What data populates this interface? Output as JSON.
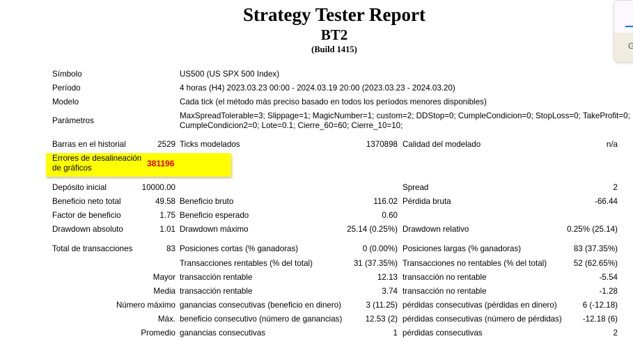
{
  "header": {
    "title": "Strategy Tester Report",
    "subtitle": "BT2",
    "build": "(Build 1415)"
  },
  "info": [
    {
      "label": "Símbolo",
      "value": "US500 (US SPX 500 Index)"
    },
    {
      "label": "Período",
      "value": "4 horas (H4) 2023.03.23 00:00 - 2024.03.19 20:00 (2023.03.23 - 2024.03.20)"
    },
    {
      "label": "Modelo",
      "value": "Cada tick (el método más preciso basado en todos los períodos menores disponibles)"
    },
    {
      "label": "Parámetros",
      "value": "MaxSpreadTolerable=3; Slippage=1; MagicNumber=1; custom=2; DDStop=0; CumpleCondicion=0; StopLoss=0; TakeProfit=0;",
      "value2": "CumpleCondicion2=0; Lote=0.1; Cierre_60=60; Cierre_10=10;"
    }
  ],
  "highlight": {
    "label1": "Errores de desalineación",
    "label2": "de gráficos",
    "value": "381196",
    "color": "#ffff00",
    "value_color": "#e00000"
  },
  "rows": [
    {
      "l1": "Barras en el historial",
      "v1": "2529",
      "l2": "Ticks modelados",
      "v2": "1370898",
      "l3": "Calidad del modelado",
      "v3": "n/a"
    },
    {
      "l1": "Depósito inicial",
      "v1": "10000.00",
      "l2": "",
      "v2": "",
      "l3": "Spread",
      "v3": "2"
    },
    {
      "l1": "Beneficio neto total",
      "v1": "49.58",
      "l2": "Beneficio bruto",
      "v2": "116.02",
      "l3": "Pérdida bruta",
      "v3": "-66.44"
    },
    {
      "l1": "Factor de beneficio",
      "v1": "1.75",
      "l2": "Beneficio esperado",
      "v2": "0.60",
      "l3": "",
      "v3": ""
    },
    {
      "l1": "Drawdown absoluto",
      "v1": "1.01",
      "l2": "Drawdown máximo",
      "v2": "25.14 (0.25%)",
      "l3": "Drawdown relativo",
      "v3": "0.25% (25.14)"
    },
    {
      "l1": "Total de transacciones",
      "v1": "83",
      "l2": "Posiciones cortas (% ganadoras)",
      "v2": "0 (0.00%)",
      "l3": "Posiciones largas (% ganadoras)",
      "v3": "83 (37.35%)"
    },
    {
      "l1": "",
      "v1": "",
      "l2": "Transacciones rentables (% del total)",
      "v2": "31 (37.35%)",
      "l3": "Transacciones no rentables (% del total)",
      "v3": "52 (62.65%)"
    },
    {
      "l1": "",
      "v1": "Mayor",
      "l2": "transacción rentable",
      "v2": "12.13",
      "l3": "transacción no rentable",
      "v3": "-5.54"
    },
    {
      "l1": "",
      "v1": "Media",
      "l2": "transacción rentable",
      "v2": "3.74",
      "l3": "transacción no rentable",
      "v3": "-1.28"
    },
    {
      "l1": "",
      "v1": "Número máximo",
      "l2": "ganancias consecutivas (beneficio en dinero)",
      "v2": "3 (11.25)",
      "l3": "pérdidas consecutivas (pérdidas en dinero)",
      "v3": "6 (-12.18)"
    },
    {
      "l1": "",
      "v1": "Máx.",
      "l2": "beneficio consecutivo (número de ganancias)",
      "v2": "12.53 (2)",
      "l3": "pérdidas consecutivas (número de pérdidas)",
      "v3": "-12.18 (6)"
    },
    {
      "l1": "",
      "v1": "Promedio",
      "l2": "ganancias consecutivas",
      "v2": "1",
      "l3": "pérdidas consecutivas",
      "v3": "2"
    }
  ],
  "popup": {
    "letter": "G",
    "accent": "#1a73e8"
  }
}
